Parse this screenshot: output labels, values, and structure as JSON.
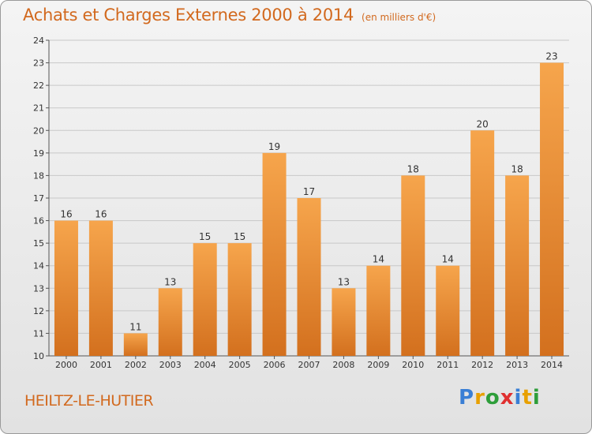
{
  "header": {
    "title": "Achats et Charges Externes 2000 à 2014",
    "subtitle": "(en milliers d'€)"
  },
  "footer": {
    "commune": "HEILTZ-LE-HUTIER",
    "logo_letters": [
      "P",
      "r",
      "o",
      "x",
      "i",
      "t",
      "i"
    ],
    "logo_colors": [
      "#3a7fd5",
      "#e8a000",
      "#2e9e3a",
      "#e03030",
      "#3a7fd5",
      "#e8a000",
      "#2e9e3a"
    ]
  },
  "colors": {
    "bar_light": "#f6a54c",
    "bar_dark": "#d3701e",
    "title": "#d2691e",
    "grid": "#c8c8c8",
    "axis": "#555555"
  },
  "chart_data": {
    "type": "bar",
    "title": "Achats et Charges Externes 2000 à 2014",
    "xlabel": "",
    "ylabel": "",
    "ylim": [
      10,
      24
    ],
    "grid": true,
    "categories": [
      "2000",
      "2001",
      "2002",
      "2003",
      "2004",
      "2005",
      "2006",
      "2007",
      "2008",
      "2009",
      "2010",
      "2011",
      "2012",
      "2013",
      "2014"
    ],
    "values": [
      16,
      16,
      11,
      13,
      15,
      15,
      19,
      17,
      13,
      14,
      18,
      14,
      20,
      18,
      23
    ],
    "yticks": [
      10,
      11,
      12,
      13,
      14,
      15,
      16,
      17,
      18,
      19,
      20,
      21,
      22,
      23,
      24
    ]
  }
}
